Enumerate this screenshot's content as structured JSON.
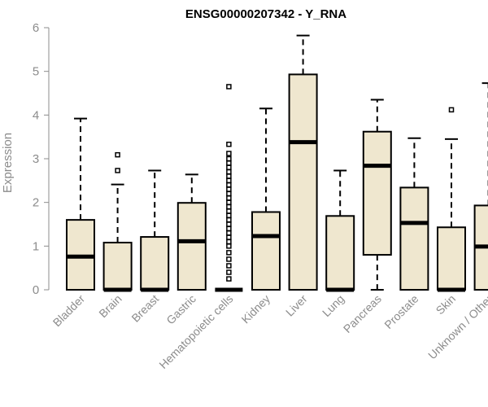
{
  "chart_data": {
    "type": "boxplot",
    "title": "ENSG00000207342 - Y_RNA",
    "xlabel": "",
    "ylabel": "Expression",
    "ylim": [
      0,
      6
    ],
    "yticks": [
      0,
      1,
      2,
      3,
      4,
      5,
      6
    ],
    "grid": false,
    "box_fill": "#efe7cf",
    "box_stroke": "#000000",
    "categories": [
      "Bladder",
      "Brain",
      "Breast",
      "Gastric",
      "Hematopoietic cells",
      "Kidney",
      "Liver",
      "Lung",
      "Pancreas",
      "Prostate",
      "Skin",
      "Unknown / Other"
    ],
    "boxes": [
      {
        "whisker_low": 0,
        "q1": 0,
        "median": 0.76,
        "q3": 1.6,
        "whisker_high": 3.92,
        "outliers": []
      },
      {
        "whisker_low": 0,
        "q1": 0,
        "median": 0,
        "q3": 1.08,
        "whisker_high": 2.41,
        "outliers": [
          2.73,
          3.09
        ]
      },
      {
        "whisker_low": 0,
        "q1": 0,
        "median": 0,
        "q3": 1.21,
        "whisker_high": 2.73,
        "outliers": []
      },
      {
        "whisker_low": 0,
        "q1": 0,
        "median": 1.11,
        "q3": 1.99,
        "whisker_high": 2.64,
        "outliers": []
      },
      {
        "whisker_low": 0,
        "q1": 0,
        "median": 0,
        "q3": 0,
        "whisker_high": 0,
        "outliers": [
          0.25,
          0.4,
          0.55,
          0.7,
          0.85,
          1.0,
          1.1,
          1.2,
          1.3,
          1.4,
          1.5,
          1.6,
          1.7,
          1.8,
          1.9,
          2.0,
          2.1,
          2.2,
          2.3,
          2.4,
          2.5,
          2.6,
          2.7,
          2.8,
          2.9,
          3.0,
          3.12,
          3.33,
          4.65
        ]
      },
      {
        "whisker_low": 0,
        "q1": 0,
        "median": 1.23,
        "q3": 1.78,
        "whisker_high": 4.15,
        "outliers": []
      },
      {
        "whisker_low": 0,
        "q1": 0,
        "median": 3.38,
        "q3": 4.93,
        "whisker_high": 5.82,
        "outliers": []
      },
      {
        "whisker_low": 0,
        "q1": 0,
        "median": 0,
        "q3": 1.69,
        "whisker_high": 2.73,
        "outliers": []
      },
      {
        "whisker_low": 0,
        "q1": 0.8,
        "median": 2.84,
        "q3": 3.62,
        "whisker_high": 4.35,
        "outliers": []
      },
      {
        "whisker_low": 0,
        "q1": 0,
        "median": 1.53,
        "q3": 2.34,
        "whisker_high": 3.47,
        "outliers": []
      },
      {
        "whisker_low": 0,
        "q1": 0,
        "median": 0,
        "q3": 1.43,
        "whisker_high": 3.45,
        "outliers": [
          4.12
        ]
      },
      {
        "whisker_low": 0,
        "q1": 0,
        "median": 0.99,
        "q3": 1.93,
        "whisker_high": 4.73,
        "outliers": []
      }
    ]
  }
}
